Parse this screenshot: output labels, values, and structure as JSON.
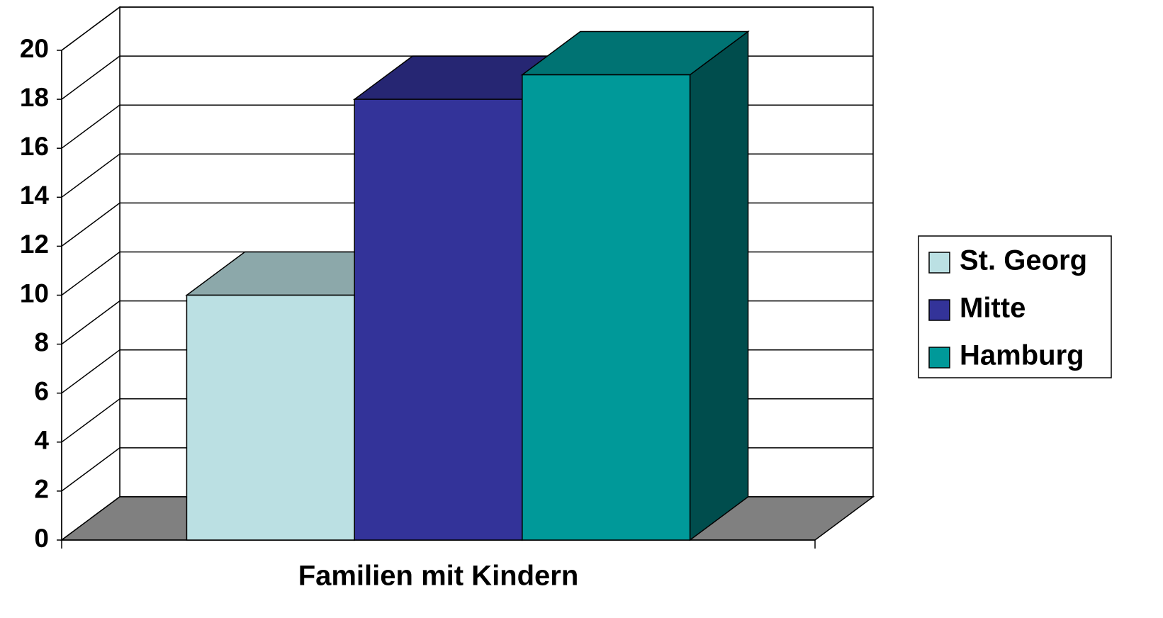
{
  "chart_data": {
    "type": "bar3d",
    "categories": [
      "Familien mit Kindern"
    ],
    "series": [
      {
        "name": "St. Georg",
        "color": "#bbe0e3",
        "values": [
          10
        ]
      },
      {
        "name": "Mitte",
        "color": "#333399",
        "values": [
          18
        ]
      },
      {
        "name": "Hamburg",
        "color": "#009999",
        "values": [
          19
        ]
      }
    ],
    "ylim": [
      0,
      20
    ],
    "yticks": [
      0,
      2,
      4,
      6,
      8,
      10,
      12,
      14,
      16,
      18,
      20
    ],
    "grid": true,
    "legend": "right"
  }
}
